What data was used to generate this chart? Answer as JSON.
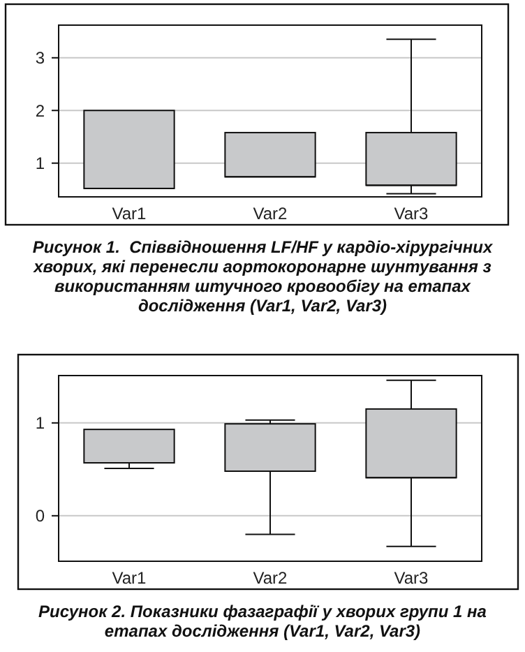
{
  "chart_data": [
    {
      "type": "box",
      "title": "Рисунок 1.  Співвідношення LF/HF у кардіо-хірургічних хворих, які перенесли аортокоронарне шунтування з використанням штучного кровообігу на етапах дослідження (Var1, Var2, Var3)",
      "categories": [
        "Var1",
        "Var2",
        "Var3"
      ],
      "color": "#c8c9cb",
      "boxes": [
        {
          "low": 0.52,
          "q1": 0.52,
          "median": 0.52,
          "q3": 2.0,
          "high": 2.0
        },
        {
          "low": 0.74,
          "q1": 0.74,
          "median": 0.74,
          "q3": 1.58,
          "high": 1.58
        },
        {
          "low": 0.42,
          "q1": 0.58,
          "median": 0.58,
          "q3": 1.58,
          "high": 3.35
        }
      ],
      "ylim": [
        0.36,
        3.62
      ],
      "yticks": [
        1,
        2,
        3
      ],
      "grid": "y"
    },
    {
      "type": "box",
      "title": "Рисунок 2. Показники фазаграфії у хворих групи 1 на етапах дослідження (Var1, Var2, Var3)",
      "categories": [
        "Var1",
        "Var2",
        "Var3"
      ],
      "color": "#c8c9cb",
      "boxes": [
        {
          "low": 0.51,
          "q1": 0.57,
          "median": 0.57,
          "q3": 0.93,
          "high": 0.93
        },
        {
          "low": -0.2,
          "q1": 0.48,
          "median": 0.48,
          "q3": 0.99,
          "high": 1.03
        },
        {
          "low": -0.33,
          "q1": 0.41,
          "median": 0.41,
          "q3": 1.15,
          "high": 1.46
        }
      ],
      "ylim": [
        -0.49,
        1.51
      ],
      "yticks": [
        0,
        1
      ],
      "grid": "y"
    }
  ]
}
